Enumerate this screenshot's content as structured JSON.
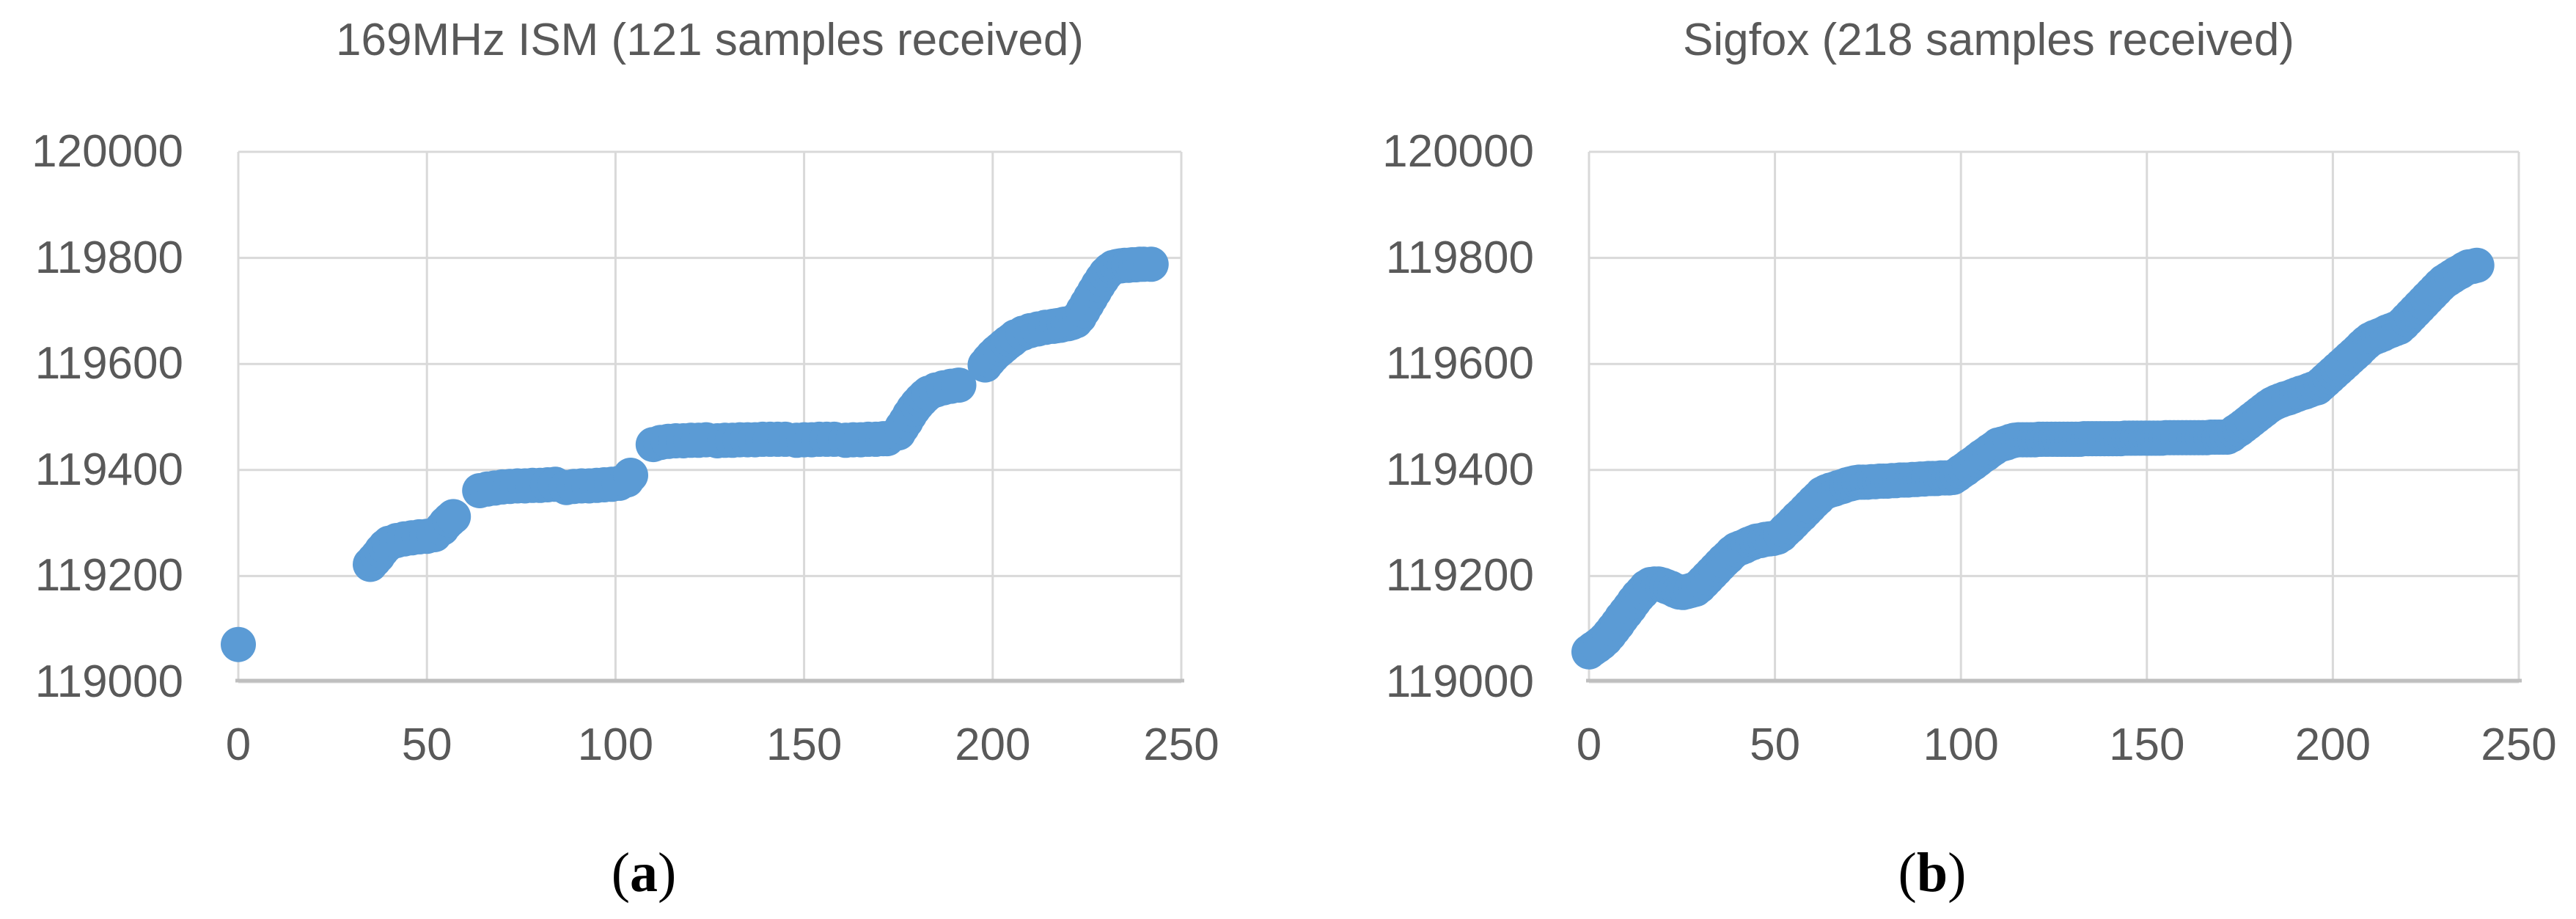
{
  "theme": {
    "background": "#ffffff",
    "point_color": "#5b9bd5",
    "gridline_color": "#d9d9d9",
    "axis_line_color": "#bfbfbf",
    "tick_label_color": "#595959",
    "title_color": "#595959",
    "caption_color": "#000000"
  },
  "chart_data": [
    {
      "type": "scatter",
      "title": "169MHz ISM (121 samples received)",
      "caption": {
        "open": "(",
        "letter": "a",
        "close": ")"
      },
      "samples_received": 121,
      "xlabel": "",
      "ylabel": "",
      "xlim": [
        0,
        250
      ],
      "ylim": [
        119000,
        120000
      ],
      "xticks": [
        0,
        50,
        100,
        150,
        200,
        250
      ],
      "yticks": [
        119000,
        119200,
        119400,
        119600,
        119800,
        120000
      ],
      "grid": true,
      "legend": "none",
      "points": [
        [
          0,
          119071
        ],
        [
          35,
          119222
        ],
        [
          36,
          119230
        ],
        [
          37,
          119238
        ],
        [
          38,
          119248
        ],
        [
          39,
          119256
        ],
        [
          40,
          119262
        ],
        [
          42,
          119267
        ],
        [
          44,
          119270
        ],
        [
          46,
          119272
        ],
        [
          48,
          119274
        ],
        [
          50,
          119275
        ],
        [
          52,
          119278
        ],
        [
          54,
          119290
        ],
        [
          55,
          119299
        ],
        [
          56,
          119306
        ],
        [
          57,
          119312
        ],
        [
          64,
          119361
        ],
        [
          66,
          119364
        ],
        [
          68,
          119366
        ],
        [
          70,
          119368
        ],
        [
          72,
          119369
        ],
        [
          74,
          119370
        ],
        [
          76,
          119370
        ],
        [
          78,
          119371
        ],
        [
          80,
          119371
        ],
        [
          82,
          119372
        ],
        [
          84,
          119373
        ],
        [
          87,
          119367
        ],
        [
          89,
          119369
        ],
        [
          91,
          119370
        ],
        [
          93,
          119370
        ],
        [
          95,
          119371
        ],
        [
          97,
          119372
        ],
        [
          99,
          119373
        ],
        [
          101,
          119375
        ],
        [
          103,
          119381
        ],
        [
          104,
          119390
        ],
        [
          110,
          119448
        ],
        [
          112,
          119452
        ],
        [
          114,
          119454
        ],
        [
          116,
          119455
        ],
        [
          118,
          119455
        ],
        [
          120,
          119456
        ],
        [
          122,
          119456
        ],
        [
          124,
          119457
        ],
        [
          127,
          119455
        ],
        [
          129,
          119456
        ],
        [
          131,
          119456
        ],
        [
          133,
          119457
        ],
        [
          135,
          119457
        ],
        [
          137,
          119457
        ],
        [
          139,
          119458
        ],
        [
          141,
          119458
        ],
        [
          143,
          119458
        ],
        [
          145,
          119458
        ],
        [
          148,
          119456
        ],
        [
          150,
          119457
        ],
        [
          152,
          119457
        ],
        [
          154,
          119458
        ],
        [
          156,
          119458
        ],
        [
          158,
          119458
        ],
        [
          161,
          119456
        ],
        [
          163,
          119457
        ],
        [
          165,
          119457
        ],
        [
          167,
          119458
        ],
        [
          169,
          119458
        ],
        [
          171,
          119459
        ],
        [
          172,
          119459
        ],
        [
          175,
          119470
        ],
        [
          176,
          119481
        ],
        [
          177,
          119492
        ],
        [
          178,
          119504
        ],
        [
          179,
          119515
        ],
        [
          180,
          119524
        ],
        [
          181,
          119532
        ],
        [
          182,
          119539
        ],
        [
          183,
          119545
        ],
        [
          185,
          119551
        ],
        [
          187,
          119555
        ],
        [
          189,
          119558
        ],
        [
          191,
          119560
        ],
        [
          198,
          119598
        ],
        [
          199,
          119607
        ],
        [
          200,
          119615
        ],
        [
          201,
          119622
        ],
        [
          202,
          119628
        ],
        [
          203,
          119634
        ],
        [
          204,
          119640
        ],
        [
          205,
          119645
        ],
        [
          206,
          119651
        ],
        [
          208,
          119658
        ],
        [
          210,
          119663
        ],
        [
          212,
          119666
        ],
        [
          214,
          119669
        ],
        [
          216,
          119671
        ],
        [
          217,
          119672
        ],
        [
          218,
          119673
        ],
        [
          219,
          119675
        ],
        [
          220,
          119676
        ],
        [
          221,
          119678
        ],
        [
          222,
          119681
        ],
        [
          223,
          119689
        ],
        [
          224,
          119701
        ],
        [
          225,
          119713
        ],
        [
          226,
          119725
        ],
        [
          227,
          119737
        ],
        [
          228,
          119749
        ],
        [
          229,
          119760
        ],
        [
          230,
          119770
        ],
        [
          231,
          119777
        ],
        [
          232,
          119782
        ],
        [
          233,
          119784
        ],
        [
          234,
          119785
        ],
        [
          235,
          119786
        ],
        [
          236,
          119786
        ],
        [
          237,
          119787
        ],
        [
          238,
          119787
        ],
        [
          239,
          119788
        ],
        [
          240,
          119788
        ],
        [
          242,
          119788
        ]
      ]
    },
    {
      "type": "scatter",
      "title": "Sigfox (218 samples received)",
      "caption": {
        "open": "(",
        "letter": "b",
        "close": ")"
      },
      "samples_received": 218,
      "xlabel": "",
      "ylabel": "",
      "xlim": [
        0,
        250
      ],
      "ylim": [
        119000,
        120000
      ],
      "xticks": [
        0,
        50,
        100,
        150,
        200,
        250
      ],
      "yticks": [
        119000,
        119200,
        119400,
        119600,
        119800,
        120000
      ],
      "grid": true,
      "legend": "none",
      "points": [
        [
          0,
          119057
        ],
        [
          1.1,
          119063
        ],
        [
          2.2,
          119068
        ],
        [
          3.3,
          119074
        ],
        [
          4.4,
          119081
        ],
        [
          5.5,
          119090
        ],
        [
          6.6,
          119100
        ],
        [
          7.7,
          119110
        ],
        [
          8.8,
          119121
        ],
        [
          9.9,
          119131
        ],
        [
          11,
          119141
        ],
        [
          12.1,
          119152
        ],
        [
          13.2,
          119162
        ],
        [
          14.3,
          119170
        ],
        [
          15.4,
          119179
        ],
        [
          16.5,
          119184
        ],
        [
          17.6,
          119185
        ],
        [
          18.7,
          119185
        ],
        [
          19.8,
          119183
        ],
        [
          20.9,
          119180
        ],
        [
          22,
          119177
        ],
        [
          23.1,
          119173
        ],
        [
          24.2,
          119170
        ],
        [
          25.3,
          119169
        ],
        [
          26.4,
          119171
        ],
        [
          27.5,
          119173
        ],
        [
          28.6,
          119175
        ],
        [
          29.7,
          119181
        ],
        [
          30.8,
          119189
        ],
        [
          31.9,
          119197
        ],
        [
          33,
          119205
        ],
        [
          34.1,
          119213
        ],
        [
          35.2,
          119221
        ],
        [
          36.3,
          119229
        ],
        [
          37.4,
          119236
        ],
        [
          38.5,
          119244
        ],
        [
          39.6,
          119250
        ],
        [
          40.7,
          119253
        ],
        [
          41.8,
          119256
        ],
        [
          42.9,
          119260
        ],
        [
          44,
          119263
        ],
        [
          45.1,
          119266
        ],
        [
          46.2,
          119267
        ],
        [
          47.3,
          119269
        ],
        [
          48.4,
          119270
        ],
        [
          49.5,
          119271
        ],
        [
          50.6,
          119273
        ],
        [
          51.7,
          119278
        ],
        [
          52.8,
          119286
        ],
        [
          53.9,
          119293
        ],
        [
          55,
          119301
        ],
        [
          56.1,
          119309
        ],
        [
          57.2,
          119316
        ],
        [
          58.3,
          119324
        ],
        [
          59.4,
          119332
        ],
        [
          60.5,
          119340
        ],
        [
          61.6,
          119347
        ],
        [
          62.7,
          119355
        ],
        [
          63.8,
          119359
        ],
        [
          64.9,
          119362
        ],
        [
          66,
          119364
        ],
        [
          67.1,
          119367
        ],
        [
          68.2,
          119369
        ],
        [
          69.3,
          119372
        ],
        [
          70.4,
          119374
        ],
        [
          71.5,
          119376
        ],
        [
          72.6,
          119377
        ],
        [
          73.7,
          119377
        ],
        [
          74.8,
          119377
        ],
        [
          75.9,
          119378
        ],
        [
          77,
          119378
        ],
        [
          78.1,
          119379
        ],
        [
          79.2,
          119379
        ],
        [
          80.3,
          119379
        ],
        [
          81.4,
          119380
        ],
        [
          82.5,
          119380
        ],
        [
          83.6,
          119381
        ],
        [
          84.7,
          119381
        ],
        [
          85.8,
          119381
        ],
        [
          86.9,
          119382
        ],
        [
          88,
          119382
        ],
        [
          89.1,
          119383
        ],
        [
          90.2,
          119383
        ],
        [
          91.3,
          119384
        ],
        [
          92.4,
          119384
        ],
        [
          93.5,
          119384
        ],
        [
          94.6,
          119385
        ],
        [
          95.7,
          119385
        ],
        [
          96.8,
          119385
        ],
        [
          97.9,
          119386
        ],
        [
          99,
          119391
        ],
        [
          100.1,
          119397
        ],
        [
          101.2,
          119402
        ],
        [
          102.3,
          119408
        ],
        [
          103.4,
          119413
        ],
        [
          104.5,
          119419
        ],
        [
          105.6,
          119425
        ],
        [
          106.7,
          119430
        ],
        [
          107.8,
          119436
        ],
        [
          108.9,
          119441
        ],
        [
          110,
          119447
        ],
        [
          111.1,
          119449
        ],
        [
          112.2,
          119451
        ],
        [
          113.3,
          119454
        ],
        [
          114.4,
          119456
        ],
        [
          115.5,
          119457
        ],
        [
          116.6,
          119457
        ],
        [
          117.7,
          119457
        ],
        [
          118.8,
          119457
        ],
        [
          119.9,
          119457
        ],
        [
          121,
          119458
        ],
        [
          122.1,
          119458
        ],
        [
          123.2,
          119458
        ],
        [
          124.3,
          119458
        ],
        [
          125.4,
          119458
        ],
        [
          126.5,
          119458
        ],
        [
          127.6,
          119458
        ],
        [
          128.7,
          119458
        ],
        [
          129.8,
          119458
        ],
        [
          130.9,
          119458
        ],
        [
          132,
          119458
        ],
        [
          133.1,
          119459
        ],
        [
          134.2,
          119459
        ],
        [
          135.3,
          119459
        ],
        [
          136.4,
          119459
        ],
        [
          137.5,
          119459
        ],
        [
          138.6,
          119459
        ],
        [
          139.7,
          119459
        ],
        [
          140.8,
          119459
        ],
        [
          141.9,
          119459
        ],
        [
          143,
          119459
        ],
        [
          144.1,
          119460
        ],
        [
          145.2,
          119460
        ],
        [
          146.3,
          119460
        ],
        [
          147.4,
          119460
        ],
        [
          148.5,
          119460
        ],
        [
          149.6,
          119460
        ],
        [
          150.7,
          119460
        ],
        [
          151.8,
          119460
        ],
        [
          152.9,
          119460
        ],
        [
          154,
          119460
        ],
        [
          155.1,
          119461
        ],
        [
          156.2,
          119461
        ],
        [
          157.3,
          119461
        ],
        [
          158.4,
          119461
        ],
        [
          159.5,
          119461
        ],
        [
          160.6,
          119461
        ],
        [
          161.7,
          119461
        ],
        [
          162.8,
          119461
        ],
        [
          163.9,
          119461
        ],
        [
          165,
          119461
        ],
        [
          166.1,
          119461
        ],
        [
          167.2,
          119462
        ],
        [
          168.3,
          119462
        ],
        [
          169.4,
          119462
        ],
        [
          170.5,
          119462
        ],
        [
          171.6,
          119462
        ],
        [
          172.7,
          119466
        ],
        [
          173.8,
          119472
        ],
        [
          174.9,
          119477
        ],
        [
          176,
          119483
        ],
        [
          177.1,
          119489
        ],
        [
          178.2,
          119495
        ],
        [
          179.3,
          119501
        ],
        [
          180.4,
          119507
        ],
        [
          181.5,
          119513
        ],
        [
          182.6,
          119519
        ],
        [
          183.7,
          119524
        ],
        [
          184.8,
          119528
        ],
        [
          185.9,
          119531
        ],
        [
          187,
          119534
        ],
        [
          188.1,
          119536
        ],
        [
          189.2,
          119539
        ],
        [
          190.3,
          119542
        ],
        [
          191.4,
          119545
        ],
        [
          192.5,
          119547
        ],
        [
          193.6,
          119550
        ],
        [
          194.7,
          119553
        ],
        [
          195.8,
          119555
        ],
        [
          196.9,
          119562
        ],
        [
          198,
          119569
        ],
        [
          199.1,
          119576
        ],
        [
          200.2,
          119583
        ],
        [
          201.3,
          119590
        ],
        [
          202.4,
          119597
        ],
        [
          203.5,
          119604
        ],
        [
          204.6,
          119611
        ],
        [
          205.7,
          119618
        ],
        [
          206.8,
          119625
        ],
        [
          207.9,
          119633
        ],
        [
          209,
          119640
        ],
        [
          210.1,
          119646
        ],
        [
          211.2,
          119650
        ],
        [
          212.3,
          119653
        ],
        [
          213.4,
          119656
        ],
        [
          214.5,
          119660
        ],
        [
          215.6,
          119663
        ],
        [
          216.7,
          119666
        ],
        [
          217.8,
          119669
        ],
        [
          218.9,
          119676
        ],
        [
          220,
          119684
        ],
        [
          221.1,
          119692
        ],
        [
          222.2,
          119700
        ],
        [
          223.3,
          119708
        ],
        [
          224.4,
          119716
        ],
        [
          225.5,
          119724
        ],
        [
          226.6,
          119732
        ],
        [
          227.7,
          119740
        ],
        [
          228.8,
          119748
        ],
        [
          229.9,
          119755
        ],
        [
          231,
          119760
        ],
        [
          232.1,
          119765
        ],
        [
          233.2,
          119770
        ],
        [
          234.3,
          119774
        ],
        [
          235.4,
          119779
        ],
        [
          236.5,
          119783
        ],
        [
          237.6,
          119784
        ],
        [
          238.7,
          119786
        ]
      ]
    }
  ]
}
